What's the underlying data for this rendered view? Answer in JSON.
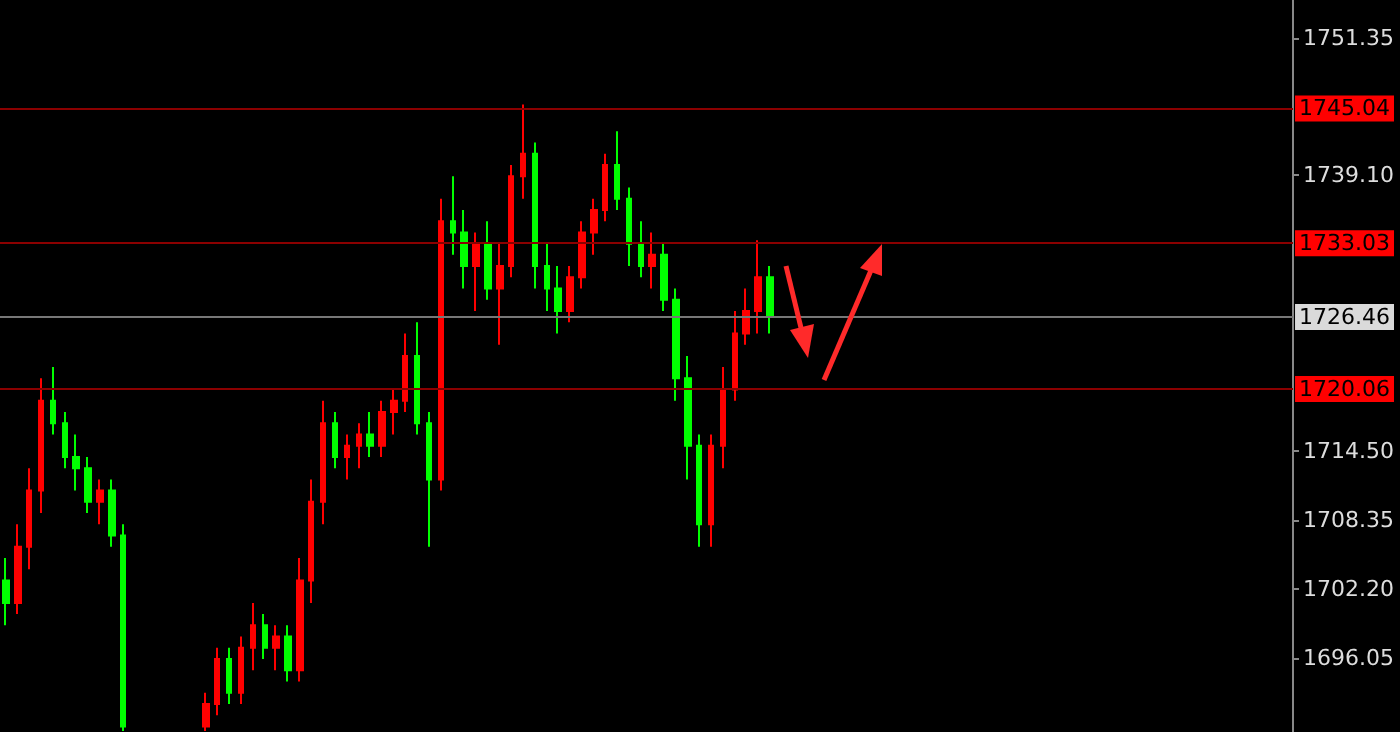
{
  "chart_data": {
    "type": "candlestick",
    "categories": [
      null,
      null,
      null,
      null,
      null,
      null,
      null,
      null,
      null,
      null,
      null,
      null,
      null,
      null,
      null,
      null,
      null,
      null,
      null,
      null,
      null,
      null,
      null,
      null,
      null,
      null,
      null,
      null,
      null,
      null,
      null,
      null,
      null,
      null,
      null,
      null,
      null,
      null,
      null,
      null,
      null,
      null,
      null,
      null,
      null,
      null,
      null,
      null,
      null,
      null,
      null,
      null,
      null,
      null,
      null,
      null,
      null,
      null,
      null,
      null,
      null,
      null,
      null,
      null,
      null,
      null,
      null,
      null,
      null,
      null,
      null,
      null,
      null,
      null,
      null,
      null,
      null,
      null,
      null,
      null,
      null,
      null,
      null,
      null,
      null,
      null,
      null,
      null,
      null,
      null,
      null,
      null,
      null,
      null,
      null,
      null,
      null,
      null,
      null,
      null,
      null,
      null,
      null,
      null,
      null,
      null,
      null,
      null,
      null,
      null
    ],
    "ohlc": [
      [
        1703,
        1705,
        1699,
        1701
      ],
      [
        1701,
        1708,
        1700,
        1706
      ],
      [
        1706,
        1713,
        1704,
        1711
      ],
      [
        1711,
        1721,
        1709,
        1719
      ],
      [
        1719,
        1722,
        1716,
        1717
      ],
      [
        1717,
        1718,
        1713,
        1714
      ],
      [
        1714,
        1716,
        1711,
        1713
      ],
      [
        1713,
        1714,
        1709,
        1710
      ],
      [
        1710,
        1712,
        1708,
        1711
      ],
      [
        1711,
        1712,
        1706,
        1707
      ],
      [
        1707,
        1708,
        1689.6,
        1690
      ],
      null,
      null,
      null,
      null,
      null,
      null,
      [
        1690,
        1693,
        1689.6,
        1692
      ],
      [
        1692,
        1697,
        1691,
        1696
      ],
      [
        1696,
        1697,
        1692,
        1693
      ],
      [
        1693,
        1698,
        1692,
        1697
      ],
      [
        1697,
        1701,
        1695,
        1699
      ],
      [
        1699,
        1700,
        1696,
        1697
      ],
      [
        1697,
        1699,
        1695,
        1698
      ],
      [
        1698,
        1699,
        1694,
        1695
      ],
      [
        1695,
        1705,
        1694,
        1703
      ],
      [
        1703,
        1712,
        1701,
        1710
      ],
      [
        1710,
        1719,
        1708,
        1717
      ],
      [
        1717,
        1718,
        1713,
        1714
      ],
      [
        1714,
        1716,
        1712,
        1715
      ],
      [
        1715,
        1717,
        1713,
        1716
      ],
      [
        1716,
        1718,
        1714,
        1715
      ],
      [
        1715,
        1719,
        1714,
        1718
      ],
      [
        1718,
        1720,
        1716,
        1719
      ],
      [
        1719,
        1725,
        1718,
        1723
      ],
      [
        1723,
        1726,
        1716,
        1717
      ],
      [
        1717,
        1718,
        1706,
        1712
      ],
      [
        1712,
        1737,
        1711,
        1735
      ],
      [
        1735,
        1739,
        1732,
        1734
      ],
      [
        1734,
        1736,
        1729,
        1731
      ],
      [
        1731,
        1734,
        1727,
        1733
      ],
      [
        1733,
        1735,
        1728,
        1729
      ],
      [
        1729,
        1733,
        1724,
        1731
      ],
      [
        1731,
        1740,
        1730,
        1739
      ],
      [
        1739,
        1745.4,
        1737,
        1741
      ],
      [
        1741,
        1742,
        1729,
        1731
      ],
      [
        1731,
        1733,
        1727,
        1729
      ],
      [
        1729,
        1731,
        1725,
        1727
      ],
      [
        1727,
        1731,
        1726,
        1730
      ],
      [
        1730,
        1735,
        1729,
        1734
      ],
      [
        1734,
        1737,
        1732,
        1736
      ],
      [
        1736,
        1741,
        1735,
        1740
      ],
      [
        1740,
        1743,
        1736,
        1737
      ],
      [
        1737,
        1738,
        1731,
        1733
      ],
      [
        1733,
        1735,
        1730,
        1731
      ],
      [
        1731,
        1734,
        1729,
        1732
      ],
      [
        1732,
        1733,
        1727,
        1728
      ],
      [
        1728,
        1729,
        1719,
        1721
      ],
      [
        1721,
        1723,
        1712,
        1715
      ],
      [
        1715,
        1716,
        1706,
        1708
      ],
      [
        1708,
        1716,
        1706,
        1715
      ],
      [
        1715,
        1722,
        1713,
        1720
      ],
      [
        1720,
        1727,
        1719,
        1725
      ],
      [
        1725,
        1729,
        1724,
        1727
      ],
      [
        1727,
        1733.3,
        1725,
        1730
      ],
      [
        1730,
        1731,
        1725,
        1726.46
      ],
      null,
      null,
      null,
      null,
      null,
      null,
      null,
      null,
      null,
      null,
      null,
      null,
      null,
      null,
      null,
      null,
      null,
      null,
      null,
      null,
      null,
      null,
      null,
      null,
      null,
      null,
      null,
      null,
      null,
      null,
      null,
      null,
      null,
      null,
      null,
      null,
      null,
      null,
      null,
      null,
      null,
      null,
      null,
      null
    ],
    "ylim": [
      1689.5,
      1754.7
    ],
    "yticks": [
      1696.05,
      {
        "value": 1702.2,
        "label": "1702.20"
      },
      1708.35,
      {
        "value": 1714.5,
        "label": "1714.50"
      },
      {
        "value": 1739.1,
        "label": "1739.10"
      },
      1751.35
    ],
    "tick_labels": "y",
    "grid": false,
    "ref_lines": [
      {
        "axis": "y",
        "value": 1745.04,
        "label": "1745.04",
        "color": "#8b0000"
      },
      {
        "axis": "y",
        "value": 1733.03,
        "label": "1733.03",
        "color": "#8b0000"
      },
      {
        "axis": "y",
        "value": 1726.46,
        "label": "1726.46",
        "color": "#777777"
      },
      {
        "axis": "y",
        "value": 1720.06,
        "label": "1720.06",
        "color": "#8b0000"
      }
    ]
  }
}
